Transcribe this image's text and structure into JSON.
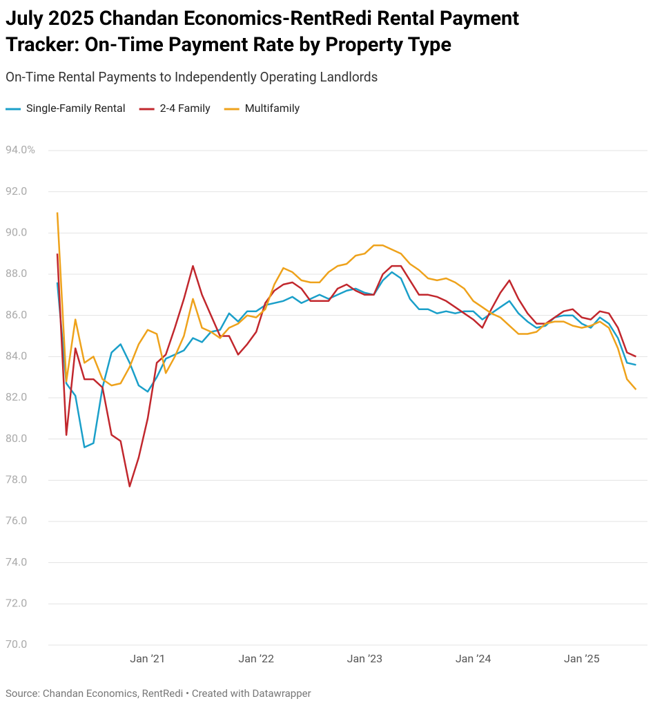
{
  "chart_data": {
    "type": "line",
    "title": "July 2025 Chandan Economics-RentRedi Rental Payment Tracker: On-Time Payment Rate by Property Type",
    "subtitle": "On-Time Rental Payments to Independently Operating Landlords",
    "source": "Source: Chandan Economics, RentRedi • Created with Datawrapper",
    "categories": [
      null,
      null,
      null,
      null,
      null,
      null,
      null,
      null,
      null,
      null,
      "Jan ’21",
      null,
      null,
      null,
      null,
      null,
      null,
      null,
      null,
      null,
      null,
      null,
      "Jan ’22",
      null,
      null,
      null,
      null,
      null,
      null,
      null,
      null,
      null,
      null,
      null,
      "Jan ’23",
      null,
      null,
      null,
      null,
      null,
      null,
      null,
      null,
      null,
      null,
      null,
      "Jan ’24",
      null,
      null,
      null,
      null,
      null,
      null,
      null,
      null,
      null,
      null,
      null,
      "Jan ’25",
      null,
      null,
      null,
      null,
      null,
      null
    ],
    "series": [
      {
        "name": "Single-Family Rental",
        "color": "#1a9fc9",
        "values": [
          87.6,
          82.7,
          82.1,
          79.6,
          79.8,
          82.5,
          84.2,
          84.6,
          83.7,
          82.6,
          82.3,
          83.0,
          83.9,
          84.1,
          84.3,
          84.9,
          84.7,
          85.2,
          85.3,
          86.1,
          85.7,
          86.2,
          86.2,
          86.5,
          86.6,
          86.7,
          86.9,
          86.6,
          86.8,
          87.0,
          86.8,
          87.0,
          87.2,
          87.3,
          87.1,
          87.0,
          87.7,
          88.1,
          87.8,
          86.8,
          86.3,
          86.3,
          86.1,
          86.2,
          86.1,
          86.2,
          86.2,
          85.8,
          86.1,
          86.4,
          86.7,
          86.1,
          85.7,
          85.4,
          85.5,
          85.9,
          86.0,
          86.0,
          85.6,
          85.4,
          85.9,
          85.6,
          84.9,
          83.7,
          83.6
        ]
      },
      {
        "name": "2-4 Family",
        "color": "#c1272d",
        "values": [
          89.0,
          80.2,
          84.4,
          82.9,
          82.9,
          82.5,
          80.2,
          79.9,
          77.7,
          79.1,
          81.0,
          83.7,
          84.1,
          85.4,
          86.8,
          88.4,
          87.0,
          86.0,
          85.0,
          85.0,
          84.1,
          84.6,
          85.2,
          86.6,
          87.2,
          87.5,
          87.6,
          87.3,
          86.7,
          86.7,
          86.7,
          87.3,
          87.5,
          87.2,
          87.0,
          87.0,
          88.0,
          88.4,
          88.4,
          87.7,
          87.0,
          87.0,
          86.9,
          86.7,
          86.4,
          86.1,
          85.8,
          85.4,
          86.3,
          87.1,
          87.7,
          86.8,
          86.1,
          85.6,
          85.6,
          85.9,
          86.2,
          86.3,
          85.9,
          85.8,
          86.2,
          86.1,
          85.4,
          84.2,
          84.0
        ]
      },
      {
        "name": "Multifamily",
        "color": "#eea21b",
        "values": [
          91.0,
          82.8,
          85.8,
          83.7,
          84.0,
          82.9,
          82.6,
          82.7,
          83.5,
          84.6,
          85.3,
          85.1,
          83.2,
          84.0,
          85.0,
          86.8,
          85.4,
          85.2,
          84.9,
          85.4,
          85.6,
          86.0,
          85.9,
          86.3,
          87.5,
          88.3,
          88.1,
          87.7,
          87.6,
          87.6,
          88.1,
          88.4,
          88.5,
          88.9,
          89.0,
          89.4,
          89.4,
          89.2,
          89.0,
          88.5,
          88.2,
          87.8,
          87.7,
          87.8,
          87.6,
          87.3,
          86.7,
          86.4,
          86.1,
          85.9,
          85.5,
          85.1,
          85.1,
          85.2,
          85.6,
          85.7,
          85.7,
          85.5,
          85.4,
          85.5,
          85.7,
          85.4,
          84.4,
          82.9,
          82.4
        ]
      }
    ],
    "ylim": [
      70,
      94
    ],
    "yticks": [
      {
        "value": 70,
        "label": "70.0"
      },
      {
        "value": 72,
        "label": "72.0"
      },
      {
        "value": 74,
        "label": "74.0"
      },
      {
        "value": 76,
        "label": "76.0"
      },
      {
        "value": 78,
        "label": "78.0"
      },
      {
        "value": 80,
        "label": "80.0"
      },
      {
        "value": 82,
        "label": "82.0"
      },
      {
        "value": 84,
        "label": "84.0"
      },
      {
        "value": 86,
        "label": "86.0"
      },
      {
        "value": 88,
        "label": "88.0"
      },
      {
        "value": 90,
        "label": "90.0"
      },
      {
        "value": 92,
        "label": "92.0"
      },
      {
        "value": 94,
        "label": "94.0%"
      }
    ],
    "grid": true
  }
}
